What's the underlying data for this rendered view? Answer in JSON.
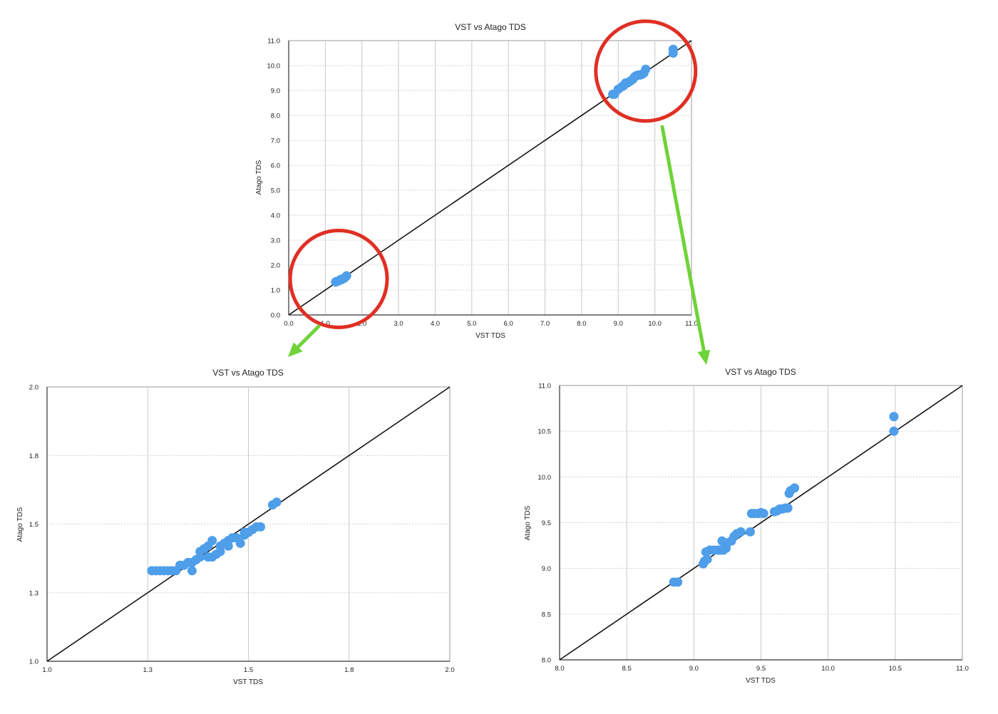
{
  "colors": {
    "point": "#4e9eea",
    "highlight_circle": "#e02f24",
    "arrow": "#6fd33a",
    "identity_line": "#111111"
  },
  "annotations": {
    "circles": [
      {
        "chart": 0,
        "cx": 1.5,
        "cy": 1.5
      },
      {
        "chart": 0,
        "cx": 9.75,
        "cy": 9.75
      }
    ],
    "arrows": [
      {
        "from_circle": 0,
        "to_chart": 1
      },
      {
        "from_circle": 1,
        "to_chart": 2
      }
    ]
  },
  "chart_data": [
    {
      "type": "scatter",
      "title": "VST vs Atago TDS",
      "xlabel": "VST TDS",
      "ylabel": "Atago TDS",
      "xlim": [
        0,
        11
      ],
      "ylim": [
        0,
        11
      ],
      "xticks": [
        "0.0",
        "1.0",
        "2.0",
        "3.0",
        "4.0",
        "5.0",
        "6.0",
        "7.0",
        "8.0",
        "9.0",
        "10.0",
        "11.0"
      ],
      "yticks": [
        "0.0",
        "1.0",
        "2.0",
        "3.0",
        "4.0",
        "5.0",
        "6.0",
        "7.0",
        "8.0",
        "9.0",
        "10.0",
        "11.0"
      ],
      "grid": true,
      "identity_line": true,
      "series": [
        {
          "x": [
            1.28,
            1.32,
            1.35,
            1.38,
            1.42,
            1.45,
            1.48,
            1.52,
            1.55,
            1.58,
            8.85,
            8.9,
            9.0,
            9.1,
            9.15,
            9.2,
            9.25,
            9.3,
            9.35,
            9.4,
            9.45,
            9.5,
            9.55,
            9.6,
            9.65,
            9.7,
            9.75,
            10.5,
            10.5
          ],
          "y": [
            1.32,
            1.35,
            1.36,
            1.38,
            1.42,
            1.42,
            1.45,
            1.48,
            1.52,
            1.57,
            8.85,
            8.85,
            9.05,
            9.15,
            9.2,
            9.3,
            9.3,
            9.35,
            9.4,
            9.45,
            9.55,
            9.6,
            9.62,
            9.62,
            9.65,
            9.7,
            9.85,
            10.5,
            10.65
          ]
        }
      ]
    },
    {
      "type": "scatter",
      "title": "VST vs Atago TDS",
      "xlabel": "VST TDS",
      "ylabel": "Atago TDS",
      "xlim": [
        1.0,
        2.0
      ],
      "ylim": [
        1.0,
        2.0
      ],
      "xticks": [
        "1.0",
        "1.3",
        "1.5",
        "1.8",
        "2.0"
      ],
      "yticks": [
        "1.0",
        "1.3",
        "1.5",
        "1.8",
        "2.0"
      ],
      "grid": true,
      "identity_line": true,
      "series": [
        {
          "x": [
            1.26,
            1.27,
            1.28,
            1.29,
            1.3,
            1.31,
            1.32,
            1.33,
            1.34,
            1.35,
            1.36,
            1.36,
            1.37,
            1.38,
            1.38,
            1.39,
            1.4,
            1.4,
            1.41,
            1.41,
            1.42,
            1.43,
            1.43,
            1.44,
            1.45,
            1.45,
            1.46,
            1.47,
            1.48,
            1.49,
            1.49,
            1.5,
            1.51,
            1.52,
            1.53,
            1.56,
            1.57
          ],
          "y": [
            1.33,
            1.33,
            1.33,
            1.33,
            1.33,
            1.33,
            1.33,
            1.35,
            1.35,
            1.36,
            1.33,
            1.36,
            1.37,
            1.38,
            1.4,
            1.41,
            1.38,
            1.42,
            1.44,
            1.38,
            1.39,
            1.4,
            1.42,
            1.43,
            1.44,
            1.42,
            1.45,
            1.45,
            1.43,
            1.46,
            1.47,
            1.47,
            1.48,
            1.49,
            1.49,
            1.57,
            1.58
          ]
        }
      ]
    },
    {
      "type": "scatter",
      "title": "VST vs Atago TDS",
      "xlabel": "VST TDS",
      "ylabel": "Atago TDS",
      "xlim": [
        8.0,
        11.0
      ],
      "ylim": [
        8.0,
        11.0
      ],
      "xticks": [
        "8.0",
        "8.5",
        "9.0",
        "9.5",
        "10.0",
        "10.5",
        "11.0"
      ],
      "yticks": [
        "8.0",
        "8.5",
        "9.0",
        "9.5",
        "10.0",
        "10.5",
        "11.0"
      ],
      "grid": true,
      "identity_line": true,
      "series": [
        {
          "x": [
            8.85,
            8.88,
            9.07,
            9.08,
            9.09,
            9.1,
            9.12,
            9.15,
            9.18,
            9.2,
            9.21,
            9.22,
            9.24,
            9.25,
            9.28,
            9.3,
            9.32,
            9.35,
            9.42,
            9.43,
            9.45,
            9.48,
            9.5,
            9.52,
            9.6,
            9.62,
            9.64,
            9.66,
            9.68,
            9.7,
            9.71,
            9.72,
            9.75,
            10.49,
            10.49
          ],
          "y": [
            8.85,
            8.85,
            9.05,
            9.08,
            9.18,
            9.1,
            9.2,
            9.2,
            9.2,
            9.2,
            9.3,
            9.2,
            9.22,
            9.28,
            9.3,
            9.35,
            9.38,
            9.4,
            9.4,
            9.6,
            9.6,
            9.6,
            9.61,
            9.6,
            9.62,
            9.63,
            9.65,
            9.65,
            9.66,
            9.66,
            9.82,
            9.85,
            9.88,
            10.5,
            10.66
          ]
        }
      ]
    }
  ]
}
